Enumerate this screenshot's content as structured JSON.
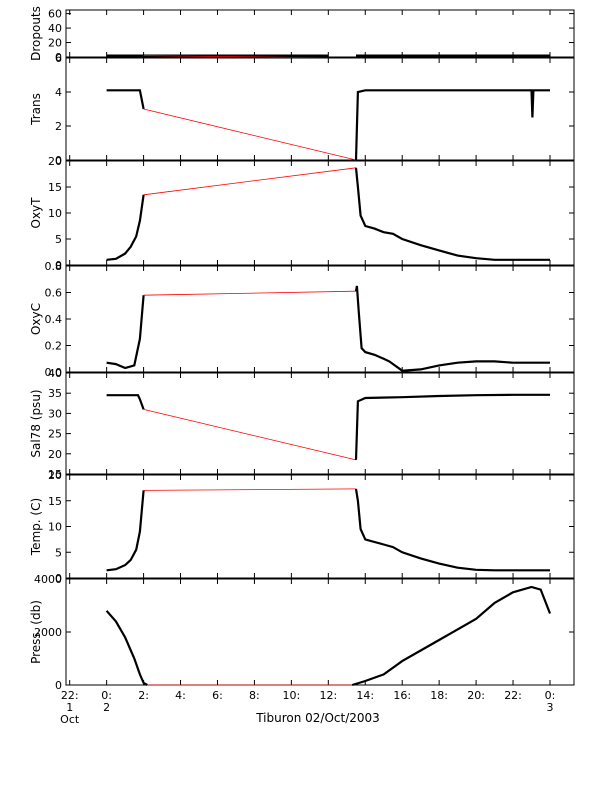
{
  "figure": {
    "title": "Tiburon 02/Oct/2003",
    "x_ticks": [
      {
        "x": -2,
        "lines": [
          "22:",
          "1",
          "Oct"
        ]
      },
      {
        "x": 0,
        "lines": [
          "0:",
          "2"
        ]
      },
      {
        "x": 2,
        "lines": [
          "2:"
        ]
      },
      {
        "x": 4,
        "lines": [
          "4:"
        ]
      },
      {
        "x": 6,
        "lines": [
          "6:"
        ]
      },
      {
        "x": 8,
        "lines": [
          "8:"
        ]
      },
      {
        "x": 10,
        "lines": [
          "10:"
        ]
      },
      {
        "x": 12,
        "lines": [
          "12:"
        ]
      },
      {
        "x": 14,
        "lines": [
          "14:"
        ]
      },
      {
        "x": 16,
        "lines": [
          "16:"
        ]
      },
      {
        "x": 18,
        "lines": [
          "18:"
        ]
      },
      {
        "x": 20,
        "lines": [
          "20:"
        ]
      },
      {
        "x": 22,
        "lines": [
          "22:"
        ]
      },
      {
        "x": 24,
        "lines": [
          "0:",
          "3"
        ]
      }
    ],
    "colors": {
      "data": "#000000",
      "gap": "#ff0000",
      "axis": "#000000",
      "grid": "#bbbbbb"
    }
  },
  "chart_data": [
    {
      "type": "line",
      "id": "dropouts",
      "ylabel": "Dropouts",
      "ylim": [
        0,
        65
      ],
      "yticks": [
        0,
        20,
        40,
        60
      ],
      "ytick_labels": [
        "0",
        "20",
        "40",
        "60"
      ],
      "xlim": [
        -2.2,
        25.3
      ],
      "series": [
        {
          "kind": "data",
          "x": [
            0,
            2,
            4,
            6,
            8,
            10,
            12
          ],
          "y": [
            2,
            2,
            2,
            2,
            2,
            2,
            2
          ]
        },
        {
          "kind": "gap",
          "x": [
            2,
            13.5
          ],
          "y": [
            2,
            -1.5
          ]
        },
        {
          "kind": "data",
          "x": [
            13.5,
            16,
            18,
            20,
            22,
            24
          ],
          "y": [
            2,
            2,
            2,
            2,
            2,
            2
          ]
        }
      ]
    },
    {
      "type": "line",
      "id": "trans",
      "ylabel": "Trans",
      "ylim": [
        0,
        6
      ],
      "yticks": [
        0,
        2,
        4,
        6
      ],
      "ytick_labels": [
        "0",
        "2",
        "4",
        "6"
      ],
      "xlim": [
        -2.2,
        25.3
      ],
      "series": [
        {
          "kind": "data",
          "x": [
            0,
            1.8,
            2.0
          ],
          "y": [
            4.1,
            4.1,
            3.0
          ]
        },
        {
          "kind": "gap",
          "x": [
            2.0,
            13.5
          ],
          "y": [
            3.0,
            0.0
          ]
        },
        {
          "kind": "data",
          "x": [
            13.5,
            13.6,
            14,
            16,
            18,
            20,
            22,
            23.0,
            23.05,
            23.1,
            24
          ],
          "y": [
            0.0,
            4.0,
            4.1,
            4.1,
            4.1,
            4.1,
            4.1,
            4.1,
            2.5,
            4.1,
            4.1
          ]
        }
      ]
    },
    {
      "type": "line",
      "id": "oxyt",
      "ylabel": "OxyT",
      "ylim": [
        0,
        20
      ],
      "yticks": [
        0,
        5,
        10,
        15,
        20
      ],
      "ytick_labels": [
        "0",
        "5",
        "10",
        "15",
        "20"
      ],
      "xlim": [
        -2.2,
        25.3
      ],
      "series": [
        {
          "kind": "data",
          "x": [
            0,
            0.5,
            1.0,
            1.3,
            1.6,
            1.8,
            2.0
          ],
          "y": [
            1.0,
            1.2,
            2.2,
            3.5,
            5.5,
            8.5,
            13.5
          ]
        },
        {
          "kind": "gap",
          "x": [
            2.0,
            13.5
          ],
          "y": [
            13.5,
            18.7
          ]
        },
        {
          "kind": "data",
          "x": [
            13.5,
            13.6,
            13.75,
            14,
            14.5,
            15,
            15.5,
            16,
            17,
            18,
            19,
            20,
            21,
            22,
            24
          ],
          "y": [
            18.7,
            15.0,
            9.5,
            7.5,
            7.0,
            6.3,
            6.0,
            5.0,
            3.8,
            2.8,
            1.8,
            1.3,
            1.0,
            1.0,
            1.0
          ]
        }
      ]
    },
    {
      "type": "line",
      "id": "oxyc",
      "ylabel": "OxyC",
      "ylim": [
        0,
        0.8
      ],
      "yticks": [
        0,
        0.2,
        0.4,
        0.6,
        0.8
      ],
      "ytick_labels": [
        "0.0",
        "0.2",
        "0.4",
        "0.6",
        "0.8"
      ],
      "xlim": [
        -2.2,
        25.3
      ],
      "series": [
        {
          "kind": "data",
          "x": [
            0,
            0.5,
            1.0,
            1.5,
            1.8,
            2.0
          ],
          "y": [
            0.07,
            0.06,
            0.03,
            0.05,
            0.25,
            0.58
          ]
        },
        {
          "kind": "gap",
          "x": [
            2.0,
            13.5
          ],
          "y": [
            0.58,
            0.61
          ]
        },
        {
          "kind": "data",
          "x": [
            13.5,
            13.55,
            13.65,
            13.8,
            14,
            14.5,
            15,
            15.3,
            15.6,
            16,
            17,
            18,
            19,
            20,
            21,
            22,
            24
          ],
          "y": [
            0.61,
            0.65,
            0.45,
            0.18,
            0.15,
            0.13,
            0.1,
            0.08,
            0.05,
            0.01,
            0.02,
            0.05,
            0.07,
            0.08,
            0.08,
            0.07,
            0.07
          ]
        }
      ]
    },
    {
      "type": "line",
      "id": "sal78",
      "ylabel": "Sal78 (psu)",
      "ylim": [
        15,
        40
      ],
      "yticks": [
        15,
        20,
        25,
        30,
        35,
        40
      ],
      "ytick_labels": [
        "15",
        "20",
        "25",
        "30",
        "35",
        "40"
      ],
      "xlim": [
        -2.2,
        25.3
      ],
      "series": [
        {
          "kind": "data",
          "x": [
            0,
            1.7,
            1.8,
            2.0
          ],
          "y": [
            34.5,
            34.5,
            33.5,
            31.0
          ]
        },
        {
          "kind": "gap",
          "x": [
            2.0,
            13.5
          ],
          "y": [
            31.0,
            18.5
          ]
        },
        {
          "kind": "data",
          "x": [
            13.5,
            13.6,
            14,
            16,
            18,
            20,
            22,
            24
          ],
          "y": [
            18.5,
            33.0,
            33.8,
            34.0,
            34.3,
            34.5,
            34.6,
            34.6
          ]
        }
      ]
    },
    {
      "type": "line",
      "id": "temp",
      "ylabel": "Temp. (C)",
      "ylim": [
        0,
        20
      ],
      "yticks": [
        0,
        5,
        10,
        15,
        20
      ],
      "ytick_labels": [
        "0",
        "5",
        "10",
        "15",
        "20"
      ],
      "xlim": [
        -2.2,
        25.3
      ],
      "series": [
        {
          "kind": "data",
          "x": [
            0,
            0.5,
            1.0,
            1.3,
            1.6,
            1.8,
            2.0
          ],
          "y": [
            1.5,
            1.7,
            2.5,
            3.5,
            5.5,
            9.0,
            17.0
          ]
        },
        {
          "kind": "gap",
          "x": [
            2.0,
            13.5
          ],
          "y": [
            17.0,
            17.3
          ]
        },
        {
          "kind": "data",
          "x": [
            13.5,
            13.6,
            13.75,
            14,
            14.5,
            15,
            15.5,
            16,
            17,
            18,
            19,
            20,
            21,
            22,
            24
          ],
          "y": [
            17.3,
            15.0,
            9.5,
            7.5,
            7.0,
            6.5,
            6.0,
            5.0,
            3.8,
            2.8,
            2.0,
            1.6,
            1.5,
            1.5,
            1.5
          ]
        }
      ]
    },
    {
      "type": "line",
      "id": "press",
      "ylabel": "Press. (db)",
      "ylim": [
        0,
        4000
      ],
      "yticks": [
        0,
        2000,
        4000
      ],
      "ytick_labels": [
        "0",
        "2000",
        "4000"
      ],
      "xlim": [
        -2.2,
        25.3
      ],
      "series": [
        {
          "kind": "data",
          "x": [
            0,
            0.5,
            1.0,
            1.5,
            1.8,
            2.0,
            2.2
          ],
          "y": [
            2800,
            2400,
            1800,
            1000,
            400,
            80,
            0
          ]
        },
        {
          "kind": "gap",
          "x": [
            2.2,
            13.3
          ],
          "y": [
            0,
            0
          ]
        },
        {
          "kind": "data",
          "x": [
            13.3,
            14,
            15,
            16,
            17,
            18,
            19,
            20,
            21,
            22,
            23,
            23.5,
            24
          ],
          "y": [
            0,
            150,
            400,
            900,
            1300,
            1700,
            2100,
            2500,
            3100,
            3500,
            3700,
            3600,
            2700
          ]
        }
      ]
    }
  ]
}
